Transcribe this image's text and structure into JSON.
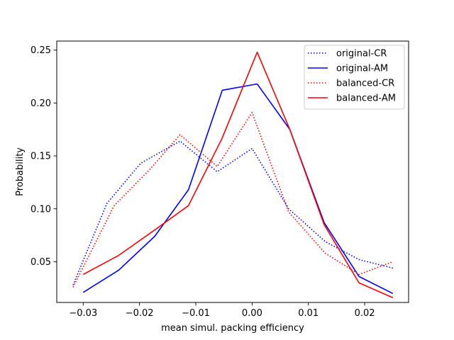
{
  "chart_data": {
    "type": "line",
    "title": "",
    "xlabel": "mean simul. packing efficiency",
    "ylabel": "Probability",
    "xlim": [
      -0.0347,
      0.0278
    ],
    "ylim": [
      0.0115,
      0.2585
    ],
    "xticks": [
      {
        "value": -0.03,
        "label": "−0.03"
      },
      {
        "value": -0.02,
        "label": "−0.02"
      },
      {
        "value": -0.01,
        "label": "−0.01"
      },
      {
        "value": 0.0,
        "label": "0.00"
      },
      {
        "value": 0.01,
        "label": "0.01"
      },
      {
        "value": 0.02,
        "label": "0.02"
      }
    ],
    "yticks": [
      {
        "value": 0.05,
        "label": "0.05"
      },
      {
        "value": 0.1,
        "label": "0.10"
      },
      {
        "value": 0.15,
        "label": "0.15"
      },
      {
        "value": 0.2,
        "label": "0.20"
      },
      {
        "value": 0.25,
        "label": "0.25"
      }
    ],
    "grid": false,
    "legend_position": "top-right",
    "series": [
      {
        "name": "original-CR",
        "color": "#0000ff",
        "style": "dotted",
        "points": [
          [
            -0.0318,
            0.028
          ],
          [
            -0.0258,
            0.105
          ],
          [
            -0.0198,
            0.143
          ],
          [
            -0.0128,
            0.164
          ],
          [
            -0.0062,
            0.135
          ],
          [
            0.0,
            0.157
          ],
          [
            0.0065,
            0.1
          ],
          [
            0.013,
            0.069
          ],
          [
            0.019,
            0.052
          ],
          [
            0.025,
            0.044
          ]
        ]
      },
      {
        "name": "original-AM",
        "color": "#0000ff",
        "style": "solid",
        "points": [
          [
            -0.03,
            0.021
          ],
          [
            -0.0237,
            0.042
          ],
          [
            -0.0173,
            0.074
          ],
          [
            -0.0113,
            0.118
          ],
          [
            -0.0053,
            0.212
          ],
          [
            0.0009,
            0.218
          ],
          [
            0.0067,
            0.175
          ],
          [
            0.0128,
            0.087
          ],
          [
            0.019,
            0.036
          ],
          [
            0.025,
            0.02
          ]
        ]
      },
      {
        "name": "balanced-CR",
        "color": "#ff0000",
        "style": "dotted",
        "points": [
          [
            -0.0318,
            0.026
          ],
          [
            -0.0245,
            0.103
          ],
          [
            -0.0182,
            0.137
          ],
          [
            -0.0128,
            0.17
          ],
          [
            -0.0062,
            0.14
          ],
          [
            0.0,
            0.191
          ],
          [
            0.0065,
            0.097
          ],
          [
            0.013,
            0.058
          ],
          [
            0.019,
            0.038
          ],
          [
            0.025,
            0.05
          ]
        ]
      },
      {
        "name": "balanced-AM",
        "color": "#ff0000",
        "style": "solid",
        "points": [
          [
            -0.03,
            0.038
          ],
          [
            -0.0237,
            0.056
          ],
          [
            -0.0173,
            0.08
          ],
          [
            -0.0113,
            0.103
          ],
          [
            -0.0053,
            0.167
          ],
          [
            0.0009,
            0.248
          ],
          [
            0.0067,
            0.175
          ],
          [
            0.0128,
            0.085
          ],
          [
            0.019,
            0.03
          ],
          [
            0.025,
            0.016
          ]
        ]
      }
    ]
  }
}
